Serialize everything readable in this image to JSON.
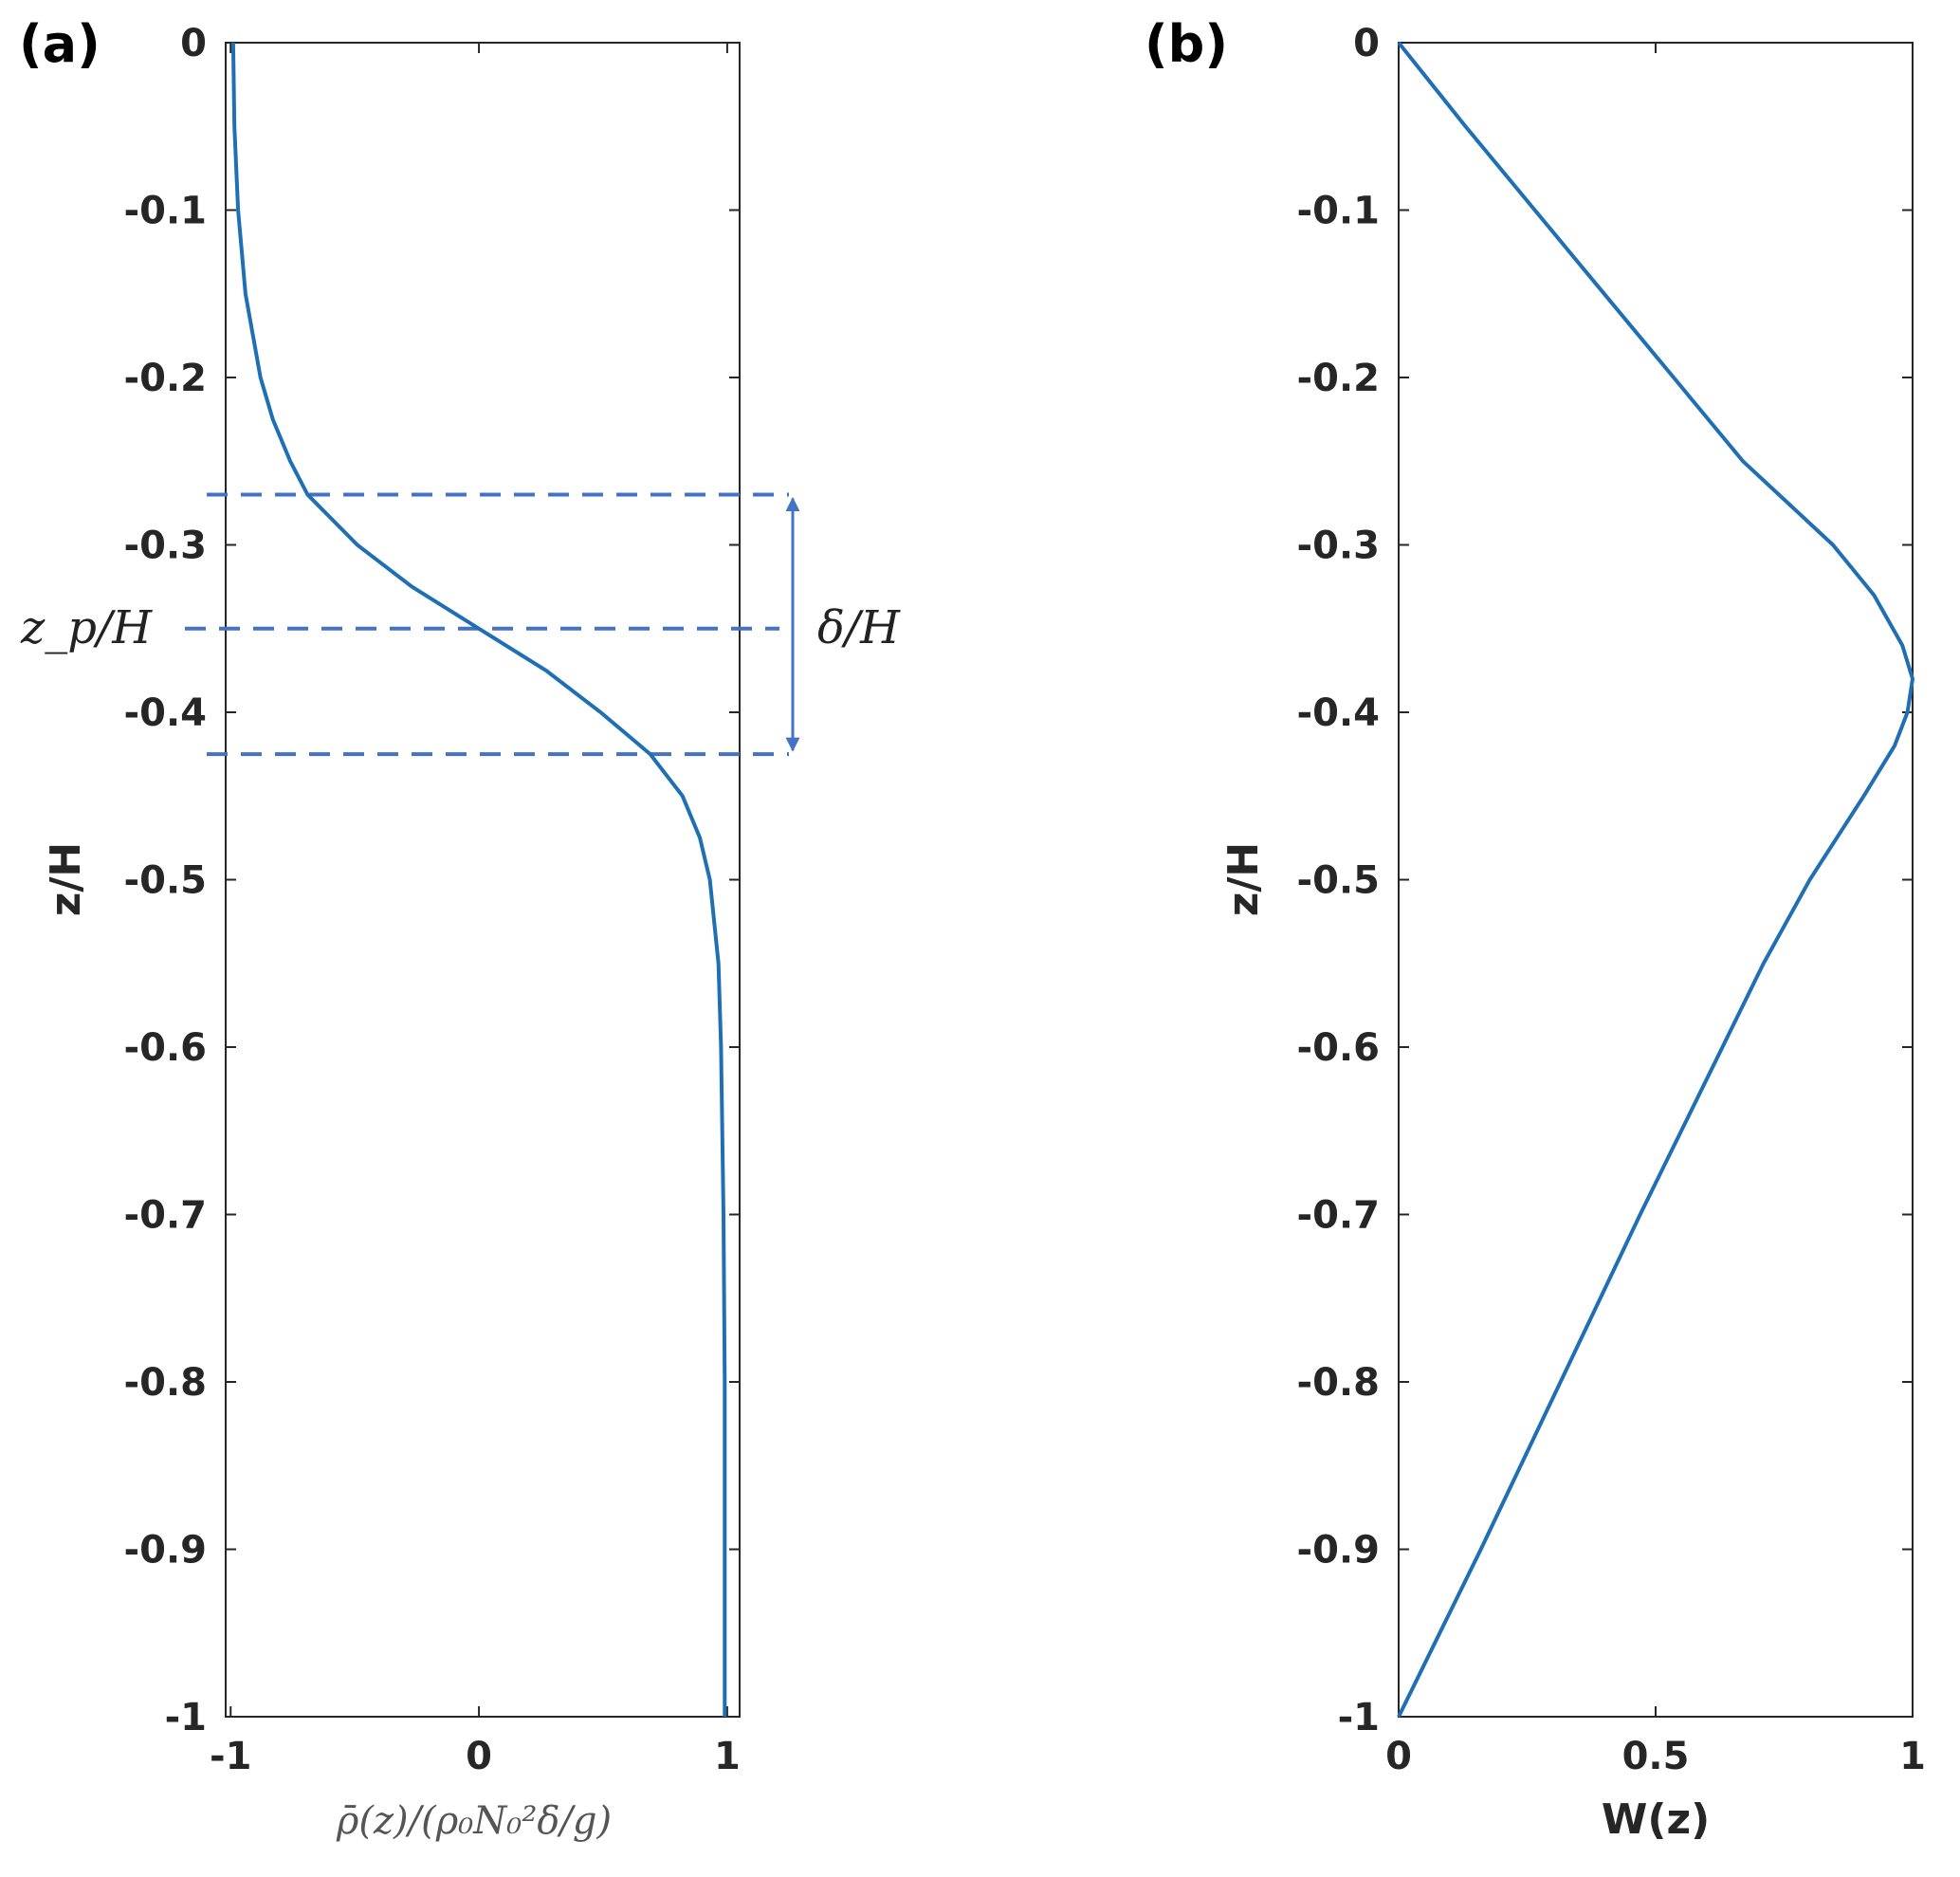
{
  "chart_data": [
    {
      "panel_label": "(a)",
      "type": "line",
      "orientation": "profile (x horizontal, z vertical)",
      "title": "",
      "xlabel": "ρ̄(z)/(ρ₀N₀²δ/g)",
      "ylabel": "z/H",
      "xlim": [
        -1.02,
        1.05
      ],
      "ylim": [
        -1,
        0
      ],
      "x_ticks": [
        -1,
        0,
        1
      ],
      "x_tick_labels": [
        "-1",
        "0",
        "1"
      ],
      "y_ticks": [
        0,
        -0.1,
        -0.2,
        -0.3,
        -0.4,
        -0.5,
        -0.6,
        -0.7,
        -0.8,
        -0.9,
        -1
      ],
      "y_tick_labels": [
        "0",
        "-0.1",
        "-0.2",
        "-0.3",
        "-0.4",
        "-0.5",
        "-0.6",
        "-0.7",
        "-0.8",
        "-0.9",
        "-1"
      ],
      "grid": false,
      "series": [
        {
          "name": "density profile",
          "color": "#1f6fb4",
          "z": [
            0,
            -0.05,
            -0.1,
            -0.15,
            -0.2,
            -0.225,
            -0.25,
            -0.27,
            -0.3,
            -0.325,
            -0.35,
            -0.375,
            -0.4,
            -0.425,
            -0.45,
            -0.475,
            -0.5,
            -0.55,
            -0.6,
            -0.65,
            -0.7,
            -0.8,
            -0.9,
            -1.0
          ],
          "x": [
            -0.99,
            -0.985,
            -0.97,
            -0.94,
            -0.88,
            -0.83,
            -0.76,
            -0.69,
            -0.49,
            -0.27,
            0.0,
            0.27,
            0.49,
            0.69,
            0.82,
            0.89,
            0.93,
            0.965,
            0.975,
            0.98,
            0.985,
            0.99,
            0.99,
            0.99
          ]
        }
      ],
      "annotations": {
        "zp_label": "z_p/H",
        "delta_label": "δ/H",
        "zp_value": -0.35,
        "delta_top": -0.27,
        "delta_bottom": -0.425,
        "annotation_color": "#4472c4"
      }
    },
    {
      "panel_label": "(b)",
      "type": "line",
      "orientation": "profile (x horizontal, z vertical)",
      "title": "",
      "xlabel": "W(z)",
      "ylabel": "z/H",
      "xlim": [
        0,
        1
      ],
      "ylim": [
        -1,
        0
      ],
      "x_ticks": [
        0,
        0.5,
        1
      ],
      "x_tick_labels": [
        "0",
        "0.5",
        "1"
      ],
      "y_ticks": [
        0,
        -0.1,
        -0.2,
        -0.3,
        -0.4,
        -0.5,
        -0.6,
        -0.7,
        -0.8,
        -0.9,
        -1
      ],
      "y_tick_labels": [
        "0",
        "-0.1",
        "-0.2",
        "-0.3",
        "-0.4",
        "-0.5",
        "-0.6",
        "-0.7",
        "-0.8",
        "-0.9",
        "-1"
      ],
      "grid": false,
      "series": [
        {
          "name": "W(z)",
          "color": "#1f6fb4",
          "z": [
            0,
            -0.05,
            -0.1,
            -0.15,
            -0.2,
            -0.25,
            -0.3,
            -0.33,
            -0.36,
            -0.38,
            -0.4,
            -0.42,
            -0.45,
            -0.5,
            -0.55,
            -0.6,
            -0.7,
            -0.8,
            -0.9,
            -1.0
          ],
          "x": [
            0,
            0.13,
            0.265,
            0.4,
            0.535,
            0.67,
            0.845,
            0.925,
            0.98,
            1.0,
            0.99,
            0.965,
            0.905,
            0.8,
            0.71,
            0.63,
            0.47,
            0.315,
            0.16,
            0.0
          ]
        }
      ]
    }
  ]
}
